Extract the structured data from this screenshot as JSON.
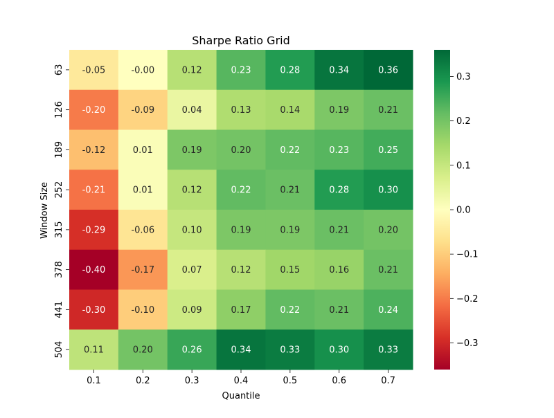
{
  "chart_data": {
    "type": "heatmap",
    "title": "Sharpe Ratio Grid",
    "xlabel": "Quantile",
    "ylabel": "Window Size",
    "x_categories": [
      "0.1",
      "0.2",
      "0.3",
      "0.4",
      "0.5",
      "0.6",
      "0.7"
    ],
    "y_categories": [
      "63",
      "126",
      "189",
      "252",
      "315",
      "378",
      "441",
      "504"
    ],
    "values": [
      [
        -0.05,
        -0.0,
        0.12,
        0.23,
        0.28,
        0.34,
        0.36
      ],
      [
        -0.2,
        -0.09,
        0.04,
        0.13,
        0.14,
        0.19,
        0.21
      ],
      [
        -0.12,
        0.01,
        0.19,
        0.2,
        0.22,
        0.23,
        0.25
      ],
      [
        -0.21,
        0.01,
        0.12,
        0.22,
        0.21,
        0.28,
        0.3
      ],
      [
        -0.29,
        -0.06,
        0.1,
        0.19,
        0.19,
        0.21,
        0.2
      ],
      [
        -0.4,
        -0.17,
        0.07,
        0.12,
        0.15,
        0.16,
        0.21
      ],
      [
        -0.3,
        -0.1,
        0.09,
        0.17,
        0.22,
        0.21,
        0.24
      ],
      [
        0.11,
        0.2,
        0.26,
        0.34,
        0.33,
        0.3,
        0.33
      ]
    ],
    "cell_labels": [
      [
        "-0.05",
        "-0.00",
        "0.12",
        "0.23",
        "0.28",
        "0.34",
        "0.36"
      ],
      [
        "-0.20",
        "-0.09",
        "0.04",
        "0.13",
        "0.14",
        "0.19",
        "0.21"
      ],
      [
        "-0.12",
        "0.01",
        "0.19",
        "0.20",
        "0.22",
        "0.23",
        "0.25"
      ],
      [
        "-0.21",
        "0.01",
        "0.12",
        "0.22",
        "0.21",
        "0.28",
        "0.30"
      ],
      [
        "-0.29",
        "-0.06",
        "0.10",
        "0.19",
        "0.19",
        "0.21",
        "0.20"
      ],
      [
        "-0.40",
        "-0.17",
        "0.07",
        "0.12",
        "0.15",
        "0.16",
        "0.21"
      ],
      [
        "-0.30",
        "-0.10",
        "0.09",
        "0.17",
        "0.22",
        "0.21",
        "0.24"
      ],
      [
        "0.11",
        "0.20",
        "0.26",
        "0.34",
        "0.33",
        "0.30",
        "0.33"
      ]
    ],
    "colormap": "RdYlGn",
    "color_range": [
      -0.36,
      0.36
    ],
    "colorbar_ticks": [
      "0.3",
      "0.2",
      "0.1",
      "0.0",
      "−0.1",
      "−0.2",
      "−0.3"
    ],
    "colorbar_tick_values": [
      0.3,
      0.2,
      0.1,
      0.0,
      -0.1,
      -0.2,
      -0.3
    ],
    "annotation_light_color": "#ffffff",
    "annotation_dark_color": "#262626"
  }
}
